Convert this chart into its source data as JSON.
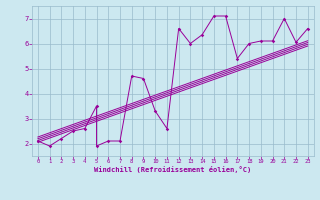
{
  "title": "",
  "xlabel": "Windchill (Refroidissement éolien,°C)",
  "ylabel": "",
  "xlim": [
    -0.5,
    23.5
  ],
  "ylim": [
    1.5,
    7.5
  ],
  "xticks": [
    0,
    1,
    2,
    3,
    4,
    5,
    6,
    7,
    8,
    9,
    10,
    11,
    12,
    13,
    14,
    15,
    16,
    17,
    18,
    19,
    20,
    21,
    22,
    23
  ],
  "yticks": [
    2,
    3,
    4,
    5,
    6,
    7
  ],
  "scatter_x": [
    0,
    1,
    2,
    3,
    4,
    5,
    5,
    6,
    7,
    8,
    9,
    10,
    11,
    12,
    13,
    14,
    15,
    16,
    17,
    18,
    19,
    20,
    21,
    22,
    23
  ],
  "scatter_y": [
    2.1,
    1.9,
    2.2,
    2.5,
    2.6,
    3.5,
    1.9,
    2.1,
    2.1,
    4.7,
    4.6,
    3.3,
    2.6,
    6.6,
    6.0,
    6.35,
    7.1,
    7.1,
    5.4,
    6.0,
    6.1,
    6.1,
    7.0,
    6.05,
    6.6
  ],
  "line_color": "#990099",
  "bg_color": "#cce8f0",
  "grid_color": "#99bbcc",
  "reg_lines": [
    {
      "x0": 0,
      "y0": 2.05,
      "x1": 23,
      "y1": 5.9
    },
    {
      "x0": 0,
      "y0": 2.12,
      "x1": 23,
      "y1": 5.97
    },
    {
      "x0": 0,
      "y0": 2.19,
      "x1": 23,
      "y1": 6.04
    },
    {
      "x0": 0,
      "y0": 2.26,
      "x1": 23,
      "y1": 6.11
    }
  ]
}
